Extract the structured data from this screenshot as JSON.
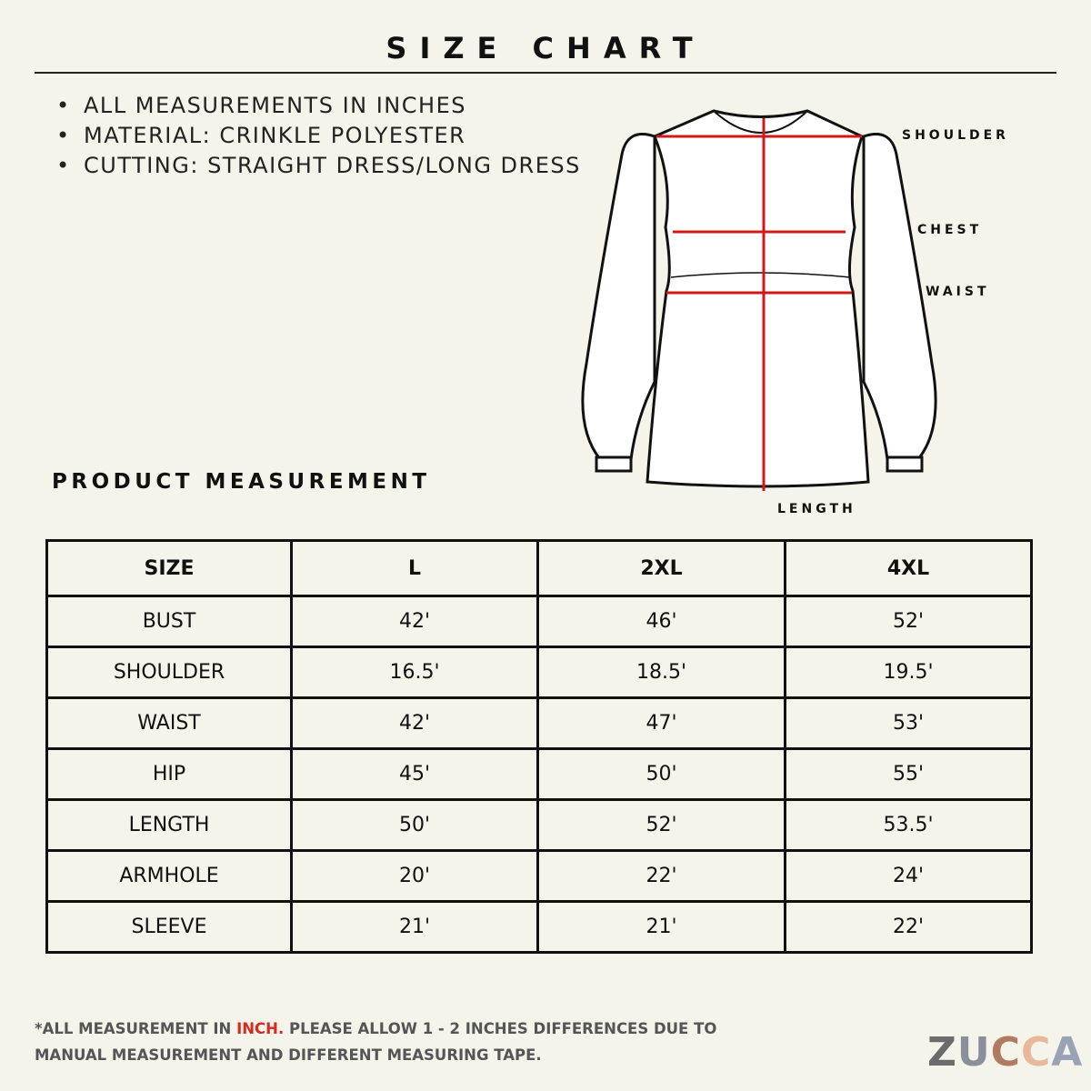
{
  "header": {
    "title": "SIZE CHART"
  },
  "notes": [
    "ALL MEASUREMENTS IN INCHES",
    "MATERIAL: CRINKLE POLYESTER",
    "CUTTING: STRAIGHT DRESS/LONG DRESS"
  ],
  "diagram": {
    "labels": {
      "shoulder": "SHOULDER",
      "chest": "CHEST",
      "waist": "WAIST",
      "length": "LENGTH"
    }
  },
  "section_title": "PRODUCT MEASUREMENT",
  "table": {
    "header": [
      "SIZE",
      "L",
      "2XL",
      "4XL"
    ],
    "rows": [
      [
        "BUST",
        "42'",
        "46'",
        "52'"
      ],
      [
        "SHOULDER",
        "16.5'",
        "18.5'",
        "19.5'"
      ],
      [
        "WAIST",
        "42'",
        "47'",
        "53'"
      ],
      [
        "HIP",
        "45'",
        "50'",
        "55'"
      ],
      [
        "LENGTH",
        "50'",
        "52'",
        "53.5'"
      ],
      [
        "ARMHOLE",
        "20'",
        "22'",
        "24'"
      ],
      [
        "SLEEVE",
        "21'",
        "21'",
        "22'"
      ]
    ]
  },
  "footer": {
    "before": "*ALL MEASUREMENT IN ",
    "highlight": "INCH.",
    "after": " PLEASE ALLOW 1 - 2 INCHES DIFFERENCES DUE TO MANUAL MEASUREMENT AND DIFFERENT MEASURING TAPE."
  },
  "logo": "ZUCCA"
}
